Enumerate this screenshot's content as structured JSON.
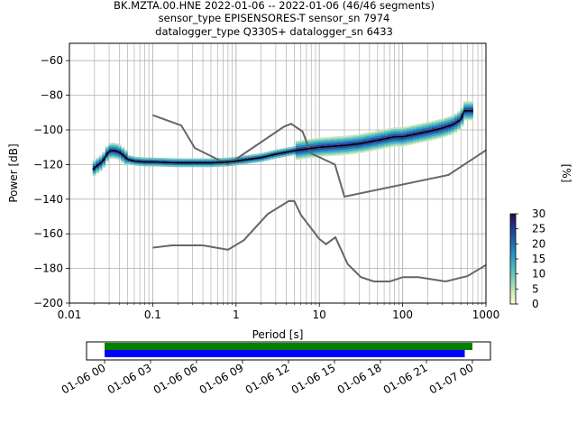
{
  "title_lines": [
    "BK.MZTA.00.HNE   2022-01-06 -- 2022-01-06  (46/46 segments)",
    "sensor_type EPISENSORES-T sensor_sn 7974",
    "datalogger_type Q330S+ datalogger_sn 6433"
  ],
  "chart_data": [
    {
      "type": "heatmap",
      "xlabel": "Period [s]",
      "ylabel": "Power [dB]",
      "xscale": "log",
      "xlim": [
        0.01,
        1000
      ],
      "ylim": [
        -200,
        -50
      ],
      "xticks": [
        0.01,
        0.1,
        1,
        10,
        100,
        1000
      ],
      "xtick_labels": [
        "0.01",
        "0.1",
        "1",
        "10",
        "100",
        "1000"
      ],
      "yticks": [
        -200,
        -180,
        -160,
        -140,
        -120,
        -100,
        -80,
        -60
      ],
      "ytick_labels": [
        "−200",
        "−180",
        "−160",
        "−140",
        "−120",
        "−100",
        "−80",
        "−60"
      ],
      "grid": true,
      "colorbar": {
        "label": "[%]",
        "min": 0,
        "max": 30,
        "ticks": [
          0,
          5,
          10,
          15,
          20,
          25,
          30
        ],
        "tick_labels": [
          "0",
          "5",
          "10",
          "15",
          "20",
          "25",
          "30"
        ],
        "colors": [
          "#ffffcc",
          "#c7e9b4",
          "#7fcdbb",
          "#41b6c4",
          "#1d91c0",
          "#225ea8",
          "#253494",
          "#2d0a3d"
        ]
      },
      "series": [
        {
          "role": "mode",
          "color": "#000000",
          "points": [
            [
              0.019,
              -123
            ],
            [
              0.021,
              -121
            ],
            [
              0.024,
              -119
            ],
            [
              0.026,
              -117
            ],
            [
              0.028,
              -114
            ],
            [
              0.031,
              -112
            ],
            [
              0.035,
              -112
            ],
            [
              0.04,
              -113
            ],
            [
              0.045,
              -115
            ],
            [
              0.05,
              -117
            ],
            [
              0.06,
              -118
            ],
            [
              0.08,
              -118.5
            ],
            [
              0.1,
              -118.5
            ],
            [
              0.2,
              -119
            ],
            [
              0.3,
              -119
            ],
            [
              0.5,
              -119
            ],
            [
              0.8,
              -118.5
            ],
            [
              1,
              -118
            ],
            [
              2,
              -116
            ],
            [
              3,
              -114
            ],
            [
              5,
              -112
            ],
            [
              7,
              -111
            ],
            [
              10,
              -110
            ],
            [
              20,
              -109
            ],
            [
              30,
              -108
            ],
            [
              50,
              -106
            ],
            [
              80,
              -104
            ],
            [
              100,
              -104
            ],
            [
              200,
              -101
            ],
            [
              300,
              -99
            ],
            [
              400,
              -97
            ],
            [
              500,
              -94
            ],
            [
              550,
              -89
            ],
            [
              700,
              -89
            ]
          ]
        },
        {
          "role": "noise_model_high",
          "color": "#666666",
          "points": [
            [
              0.1,
              -91.5
            ],
            [
              0.22,
              -97.4
            ],
            [
              0.32,
              -110.5
            ],
            [
              0.8,
              -120
            ],
            [
              3.8,
              -98
            ],
            [
              4.6,
              -96.5
            ],
            [
              6.3,
              -101
            ],
            [
              7.9,
              -113.5
            ],
            [
              15.4,
              -120
            ],
            [
              20,
              -138.5
            ],
            [
              354.8,
              -126
            ],
            [
              10000,
              -80
            ]
          ]
        },
        {
          "role": "noise_model_low",
          "color": "#666666",
          "points": [
            [
              0.1,
              -168
            ],
            [
              0.17,
              -166.7
            ],
            [
              0.4,
              -166.7
            ],
            [
              0.8,
              -169.2
            ],
            [
              1.24,
              -163.7
            ],
            [
              2.4,
              -148.6
            ],
            [
              4.3,
              -141.1
            ],
            [
              5,
              -141.1
            ],
            [
              6,
              -149
            ],
            [
              10,
              -163
            ],
            [
              12,
              -166
            ],
            [
              15.6,
              -162
            ],
            [
              21.9,
              -177.5
            ],
            [
              31.6,
              -185
            ],
            [
              45,
              -187.5
            ],
            [
              70,
              -187.5
            ],
            [
              101,
              -185
            ],
            [
              154,
              -185
            ],
            [
              328,
              -187.5
            ],
            [
              600,
              -184.4
            ],
            [
              1000,
              -178
            ],
            [
              10000,
              -168
            ]
          ]
        }
      ]
    },
    {
      "type": "timeline",
      "xlim": [
        "01-06 00",
        "01-07 00"
      ],
      "tick_labels": [
        "01-06 00",
        "01-06 03",
        "01-06 06",
        "01-06 09",
        "01-06 12",
        "01-06 15",
        "01-06 18",
        "01-06 21",
        "01-07 00"
      ],
      "bars": [
        {
          "color": "#008000",
          "start": "01-06 00",
          "end": "01-07 00"
        },
        {
          "color": "#0000ff",
          "start": "01-06 00",
          "end": "01-06 23:30"
        }
      ]
    }
  ]
}
